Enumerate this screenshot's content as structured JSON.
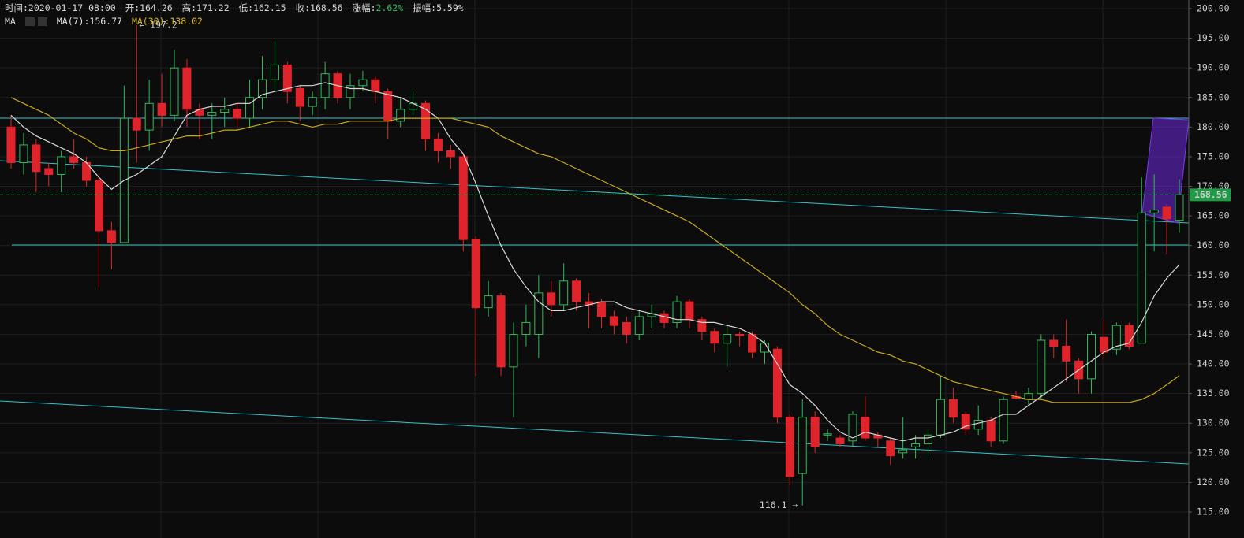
{
  "info": {
    "time": "时间:2020-01-17 08:00",
    "open": "开:164.26",
    "high": "高:171.22",
    "low": "低:162.15",
    "close": "收:168.56",
    "change_label": "涨幅:",
    "change": "2.62%",
    "amplitude": "振幅:5.59%",
    "ma_label": "MA",
    "ma7": "MA(7):156.77",
    "ma30": "MA(30):138.02"
  },
  "chart_data": {
    "type": "candlestick",
    "up_color": "#2dbd5a",
    "down_color": "#e0242c",
    "ylim": [
      115,
      200
    ],
    "yticks": [
      {
        "value": 115,
        "label": "115.00"
      },
      {
        "value": 120,
        "label": "120.00"
      },
      {
        "value": 125,
        "label": "125.00"
      },
      {
        "value": 130,
        "label": "130.00"
      },
      {
        "value": 135,
        "label": "135.00"
      },
      {
        "value": 140,
        "label": "140.00"
      },
      {
        "value": 145,
        "label": "145.00"
      },
      {
        "value": 150,
        "label": "150.00"
      },
      {
        "value": 155,
        "label": "155.00"
      },
      {
        "value": 160,
        "label": "160.00"
      },
      {
        "value": 165,
        "label": "165.00"
      },
      {
        "value": 170,
        "label": "170.00"
      },
      {
        "value": 175,
        "label": "175.00"
      },
      {
        "value": 180,
        "label": "180.00"
      },
      {
        "value": 185,
        "label": "185.00"
      },
      {
        "value": 190,
        "label": "190.00"
      },
      {
        "value": 195,
        "label": "195.00"
      },
      {
        "value": 200,
        "label": "200.00"
      }
    ],
    "grid": true,
    "open": [
      180,
      174,
      177,
      173,
      172,
      175,
      174,
      171,
      162.5,
      160.5,
      181.5,
      179.5,
      184,
      182,
      190,
      183,
      182,
      182.5,
      183,
      181.5,
      185,
      188,
      190.5,
      186.5,
      183.5,
      185,
      189,
      185,
      187,
      188,
      186,
      181,
      183,
      184,
      178,
      176,
      175,
      161,
      149.5,
      151.5,
      139.5,
      145,
      145,
      152,
      150,
      154,
      150.5,
      150.5,
      148,
      147,
      145,
      148,
      148.5,
      147,
      150.5,
      147.5,
      145.5,
      143.5,
      145,
      145,
      142,
      142.5,
      131,
      121.5,
      131,
      128,
      127.5,
      127,
      131,
      128,
      127,
      125,
      126,
      126.5,
      128,
      134,
      131.5,
      129,
      130.5,
      127,
      134.5,
      134,
      135,
      144,
      143,
      140.5,
      137.5,
      144.5,
      142.5,
      146.5,
      143.5,
      165.5,
      166.5,
      164.26
    ],
    "high": [
      182,
      179,
      178,
      174,
      176,
      178,
      175,
      172,
      164,
      187,
      197.2,
      188,
      189,
      193,
      191.5,
      184,
      184,
      185,
      184,
      188,
      192,
      194.5,
      191,
      187,
      186,
      191,
      189.5,
      189,
      189.5,
      188.5,
      186.5,
      185,
      186,
      184.5,
      179,
      177,
      175.5,
      161.5,
      154,
      152,
      147,
      150,
      155,
      154,
      157,
      154.5,
      152,
      151,
      149,
      148,
      149,
      150,
      149,
      151.5,
      151,
      148,
      146,
      146.5,
      145.5,
      145.5,
      144,
      143,
      131.5,
      134,
      132,
      129,
      128,
      132,
      134.5,
      128.5,
      127.5,
      131,
      128,
      129,
      138,
      136,
      132,
      133,
      131,
      134.5,
      135.5,
      136,
      145,
      145,
      147.5,
      141,
      145.5,
      147.5,
      147,
      147,
      171.5,
      172,
      167,
      171.22
    ],
    "low": [
      173,
      172,
      169,
      170,
      169,
      173,
      170,
      153,
      156,
      160.5,
      174,
      176,
      180,
      181,
      180,
      178,
      178,
      180,
      180,
      180,
      183,
      186,
      184,
      181,
      182,
      183,
      184,
      183,
      186,
      184,
      178,
      180,
      182,
      176,
      174,
      173,
      159,
      138,
      148,
      138,
      131,
      143,
      141,
      148,
      149,
      149,
      146,
      146,
      145,
      143.5,
      144,
      146,
      146,
      146,
      146,
      144,
      142,
      139.5,
      143,
      141,
      140,
      130,
      119.5,
      116.1,
      125,
      127,
      126,
      126,
      127,
      126,
      123,
      124,
      124,
      124.5,
      127.5,
      130,
      128,
      128,
      126,
      126.5,
      134,
      133,
      134,
      141,
      137,
      135,
      135,
      141,
      141.5,
      142.5,
      143.5,
      159,
      158.5,
      162.15
    ],
    "close": [
      174,
      177,
      172.5,
      172,
      175,
      174,
      171,
      162.5,
      160.5,
      181.5,
      179.5,
      184,
      182,
      190,
      183,
      182,
      182.5,
      183,
      181.5,
      185,
      188,
      190.5,
      186,
      183.5,
      185,
      189,
      185,
      187,
      188,
      186,
      181,
      183,
      184,
      178,
      176,
      175,
      161,
      149.5,
      151.5,
      139.5,
      145,
      147,
      152,
      150,
      154,
      150.5,
      150,
      148,
      146.5,
      145,
      148,
      148.5,
      147,
      150.5,
      147.5,
      145.5,
      143.5,
      145,
      144.8,
      142,
      143.5,
      131,
      121,
      131,
      126,
      128.2,
      126.5,
      131.5,
      127.5,
      127.5,
      124.5,
      125.5,
      126.5,
      128,
      134,
      131,
      129,
      130.5,
      127,
      134,
      134.2,
      135,
      144,
      143,
      140.5,
      137.5,
      145,
      142,
      146.5,
      143,
      165.5,
      166,
      164.5,
      168.56
    ],
    "series": [
      {
        "color": "#d8d8d8",
        "values": [
          182,
          180,
          178.5,
          177.5,
          176.5,
          175.5,
          174,
          171.5,
          169.5,
          171,
          172,
          173.5,
          175,
          178.5,
          182,
          183,
          183.5,
          183.5,
          184,
          184,
          185.5,
          186,
          186.5,
          187,
          187,
          187.5,
          187,
          186.5,
          186.5,
          186,
          185.5,
          185,
          184,
          183,
          181.5,
          178,
          175.5,
          170.5,
          165,
          160,
          156,
          153,
          150.5,
          149,
          149,
          149.5,
          150,
          150.5,
          150.5,
          149.5,
          149,
          148.5,
          148,
          147.5,
          147.5,
          147,
          147,
          146.5,
          146,
          145,
          143.5,
          140,
          136.5,
          135,
          133,
          130.5,
          128.5,
          127.5,
          128.5,
          128,
          127.5,
          127,
          127.5,
          127.5,
          128,
          128.5,
          129.5,
          130,
          130.5,
          131.5,
          131.5,
          133,
          134.5,
          136,
          137.5,
          139,
          140.5,
          142,
          143,
          143.5,
          147,
          151.5,
          154.5,
          156.77
        ]
      },
      {
        "color": "#c9a91c",
        "values": [
          185,
          184,
          183,
          182,
          180.5,
          179,
          178,
          176.5,
          176,
          176,
          176.5,
          177,
          177.5,
          178,
          178.5,
          178.5,
          179,
          179.5,
          179.5,
          180,
          180.5,
          181,
          181,
          180.5,
          180,
          180.5,
          180.5,
          181,
          181,
          181,
          181,
          181.5,
          181.5,
          181.5,
          181.5,
          181.5,
          181,
          180.5,
          180,
          178.5,
          177.5,
          176.5,
          175.5,
          175,
          174,
          173,
          172,
          171,
          170,
          169,
          168,
          167,
          166,
          165,
          164,
          162.5,
          161,
          159.5,
          158,
          156.5,
          155,
          153.5,
          152,
          150,
          148.5,
          146.5,
          145,
          144,
          143,
          142,
          141.5,
          140.5,
          140,
          139,
          138,
          137,
          136.5,
          136,
          135.5,
          135,
          134.5,
          134,
          134,
          133.5,
          133.5,
          133.5,
          133.5,
          133.5,
          133.5,
          133.5,
          134,
          135,
          136.5,
          138.02
        ]
      }
    ],
    "current_price": 168.56,
    "annotations": [
      {
        "value": 197.2,
        "label": "← 197.2"
      },
      {
        "value": 116.1,
        "label": "116.1 →"
      }
    ]
  }
}
